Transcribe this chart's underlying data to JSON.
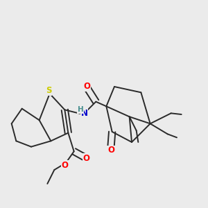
{
  "background_color": "#ebebeb",
  "bond_color": "#2a2a2a",
  "colors": {
    "O": "#ff0000",
    "S": "#cccc00",
    "N": "#0000cc",
    "H": "#4a9090",
    "C": "#2a2a2a"
  },
  "figsize": [
    3.0,
    3.0
  ],
  "dpi": 100,
  "lw": 1.4
}
